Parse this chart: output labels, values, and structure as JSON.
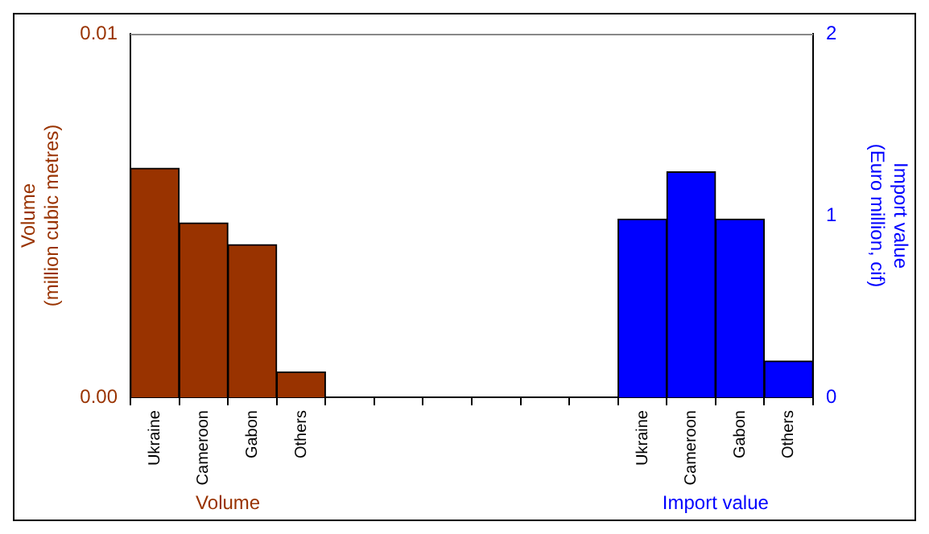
{
  "chart_data": {
    "type": "bar",
    "categories": [
      "Ukraine",
      "Cameroon",
      "Gabon",
      "Others",
      null,
      null,
      null,
      null,
      null,
      null,
      "Ukraine",
      "Cameroon",
      "Gabon",
      "Others"
    ],
    "series": [
      {
        "name": "Volume",
        "color": "#993300",
        "values": [
          0.0063,
          0.0048,
          0.0042,
          0.0007,
          null,
          null,
          null,
          null,
          null,
          null,
          null,
          null,
          null,
          null
        ]
      },
      {
        "name": "Import value",
        "color": "#0000ff",
        "axis": "y2",
        "values": [
          null,
          null,
          null,
          null,
          null,
          null,
          null,
          null,
          null,
          null,
          0.98,
          1.24,
          0.98,
          0.2
        ]
      }
    ],
    "ylabel": "Volume\n(million cubic metres)",
    "y2label": "Import value\n(Euro million, cif)",
    "ylim": [
      0,
      0.01
    ],
    "yticks": [
      {
        "value": 0,
        "label": "0.00"
      },
      {
        "value": 0.01,
        "label": "0.01"
      }
    ],
    "y2lim": [
      0,
      2
    ],
    "y2ticks": [
      0,
      1,
      2
    ],
    "grid": false,
    "legend": false
  }
}
